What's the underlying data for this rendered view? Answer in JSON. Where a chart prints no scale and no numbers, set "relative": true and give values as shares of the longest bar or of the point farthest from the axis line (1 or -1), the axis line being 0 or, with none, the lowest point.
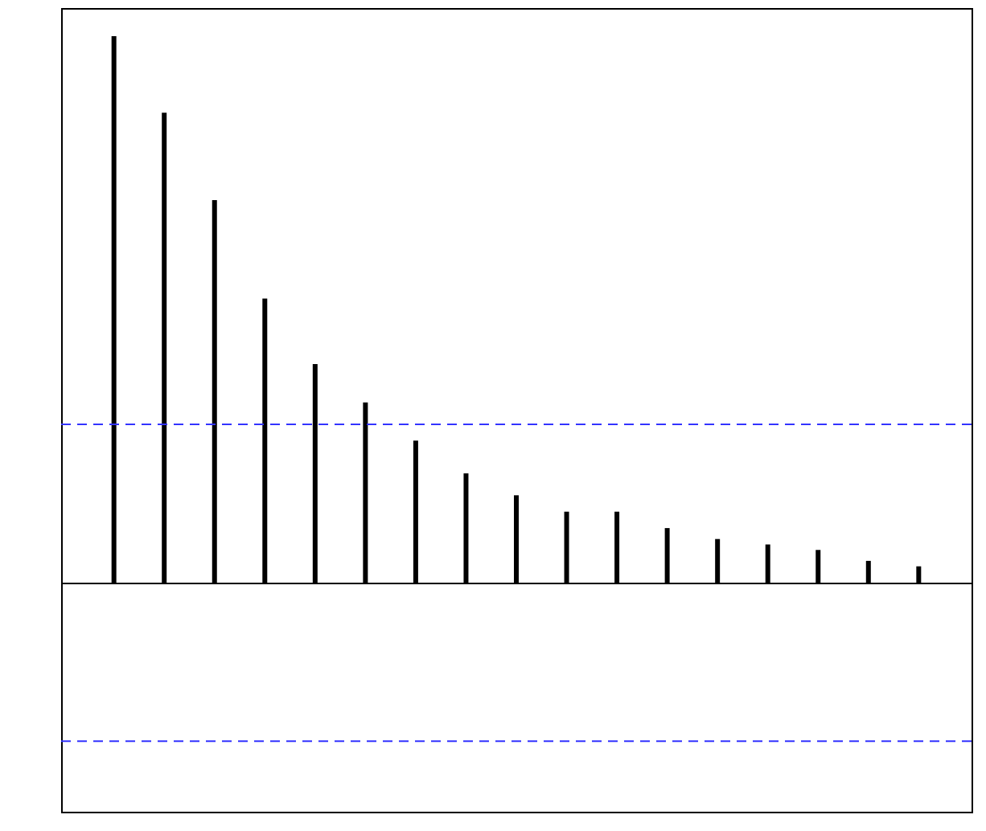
{
  "chart_data": {
    "type": "bar",
    "relative": true,
    "color": "#000000",
    "categories": [
      null,
      null,
      null,
      null,
      null,
      null,
      null,
      null,
      null,
      null,
      null,
      null,
      null,
      null,
      null,
      null,
      null
    ],
    "values": [
      1,
      0.86,
      0.7,
      0.52,
      0.4,
      0.33,
      0.26,
      0.2,
      0.16,
      0.13,
      0.13,
      0.1,
      0.08,
      0.07,
      0.06,
      0.04,
      0.03
    ],
    "ref_lines": [
      {
        "axis": "y",
        "value": 0.29,
        "color": "#3333ff",
        "line_style": "dashed"
      },
      {
        "axis": "y",
        "value": -0.29,
        "color": "#3333ff",
        "line_style": "dashed"
      }
    ]
  }
}
